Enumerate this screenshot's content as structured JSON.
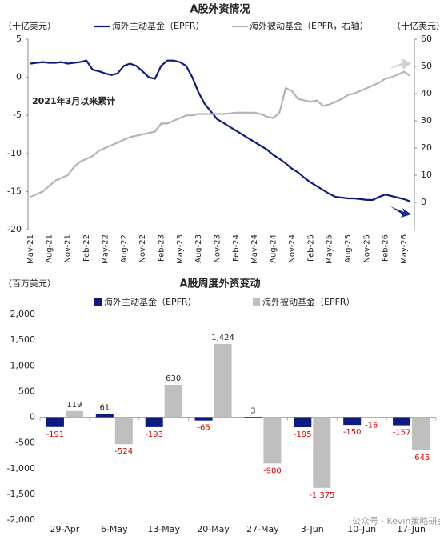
{
  "chart_data": [
    {
      "type": "line",
      "title": "A股外资情况",
      "ylabel": "（十亿美元）",
      "y2label": "（十亿美元）",
      "annotation": "2021年3月以来累计",
      "categories": [
        "May-21",
        null,
        null,
        "Aug-21",
        null,
        null,
        "Nov-21",
        null,
        null,
        "Feb-22",
        null,
        null,
        "May-22",
        null,
        null,
        "Aug-22",
        null,
        null,
        "Nov-22",
        null,
        null,
        "Feb-23",
        null,
        null,
        "May-23",
        null,
        null,
        "Aug-23",
        null,
        null,
        "Nov-23",
        null,
        null,
        "Feb-24",
        null,
        null,
        "May-24",
        null,
        null,
        "Aug-24",
        null,
        null,
        "Nov-24",
        null,
        null,
        "Feb-25",
        null,
        null,
        "May-25",
        null,
        null,
        "Aug-25",
        null,
        null,
        "Nov-25",
        null,
        null,
        "Feb-26",
        null,
        null,
        "May-26",
        null
      ],
      "series": [
        {
          "name": "海外主动基金（EPFR）",
          "color": "#0d1a80",
          "values": [
            1.8,
            1.9,
            2.0,
            1.9,
            1.9,
            2.0,
            1.8,
            1.9,
            2.0,
            2.2,
            1.0,
            0.8,
            0.5,
            0.3,
            0.5,
            1.5,
            1.8,
            1.5,
            0.8,
            0.0,
            -0.2,
            1.5,
            2.2,
            2.2,
            2.0,
            1.5,
            0.0,
            -2.0,
            -3.5,
            -4.5,
            -5.5,
            -6.0,
            -6.5,
            -7.0,
            -7.5,
            -8.0,
            -8.5,
            -9.0,
            -9.5,
            -10.2,
            -10.7,
            -11.3,
            -12.0,
            -12.5,
            -13.2,
            -13.8,
            -14.3,
            -14.8,
            -15.3,
            -15.7,
            -15.8,
            -15.9,
            -15.9,
            -16.0,
            -16.1,
            -16.1,
            -15.7,
            -15.4,
            -15.6,
            -15.8,
            -16.0,
            -16.3
          ]
        },
        {
          "name": "海外被动基金（EPFR，右轴）",
          "color": "#b4b4b4",
          "axis": "y2",
          "values": [
            2,
            3,
            4,
            6,
            8,
            9,
            10,
            13,
            15,
            16,
            17,
            19,
            20,
            21,
            22,
            23,
            24,
            24.5,
            25,
            25.5,
            26,
            29,
            29,
            30,
            31,
            32,
            32,
            32.5,
            32.5,
            32.5,
            32.5,
            32.5,
            32.7,
            33,
            33,
            33,
            33,
            32.5,
            31.5,
            31,
            33,
            42,
            41,
            38,
            37.5,
            37,
            37.5,
            35.5,
            36,
            37,
            38,
            39.5,
            40,
            41,
            42,
            43,
            44,
            45.5,
            46,
            47,
            48,
            46.5
          ]
        }
      ],
      "ylim": [
        -20,
        5
      ],
      "yticks": [
        -20,
        -15,
        -10,
        -5,
        0,
        5
      ],
      "y2lim": [
        -10,
        60
      ],
      "y2ticks": [
        0,
        10,
        20,
        30,
        40,
        50,
        60
      ]
    },
    {
      "type": "bar",
      "title": "A股周度外资变动",
      "ylabel": "（百万美元）",
      "watermark": "公众号 · Kevin策略研究",
      "categories": [
        "29-Apr",
        "6-May",
        "13-May",
        "20-May",
        "27-May",
        "3-Jun",
        "10-Jun",
        "17-Jun"
      ],
      "series": [
        {
          "name": "海外主动基金（EPFR）",
          "color": "#0d1a80",
          "values": [
            -191,
            61,
            -193,
            -65,
            3,
            -195,
            -150,
            -157
          ]
        },
        {
          "name": "海外被动基金（EPFR）",
          "color": "#bfbfbf",
          "values": [
            119,
            -524,
            630,
            1424,
            -900,
            -1375,
            -16,
            -645
          ],
          "value_labels": [
            "119",
            "-524",
            "630",
            "1,424",
            "-900",
            "-1,375",
            "-16",
            "-645"
          ]
        }
      ],
      "ylim": [
        -2000,
        2000
      ],
      "yticks": [
        {
          "value": -2000,
          "label": "-2,000"
        },
        {
          "value": -1500,
          "label": "-1,500"
        },
        {
          "value": -1000,
          "label": "-1,000"
        },
        -500,
        0,
        500,
        {
          "value": 1000,
          "label": "1,000"
        },
        {
          "value": 1500,
          "label": "1,500"
        },
        {
          "value": 2000,
          "label": "2,000"
        }
      ]
    }
  ]
}
